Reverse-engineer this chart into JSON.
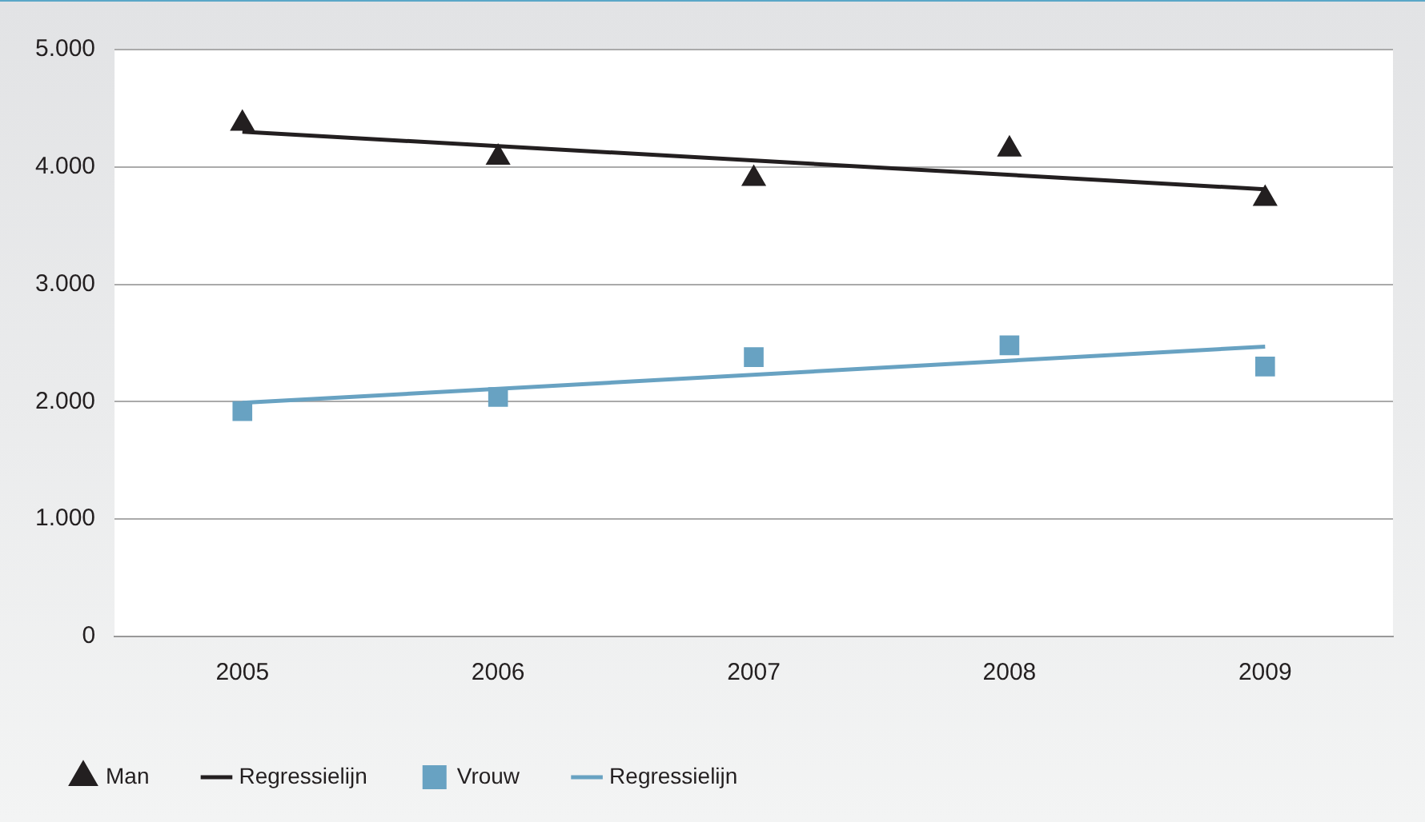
{
  "chart_data": {
    "type": "line",
    "categories": [
      "2005",
      "2006",
      "2007",
      "2008",
      "2009"
    ],
    "series": [
      {
        "name": "Man",
        "type": "scatter",
        "marker": "triangle",
        "color": "#231f20",
        "values": [
          4370,
          4080,
          3900,
          4150,
          3730
        ]
      },
      {
        "name": "Regressielijn",
        "marker": "none",
        "color": "#231f20",
        "values": [
          4300,
          null,
          null,
          null,
          3810
        ]
      },
      {
        "name": "Vrouw",
        "type": "scatter",
        "marker": "square",
        "color": "#68a2c2",
        "values": [
          1920,
          2040,
          2380,
          2480,
          2300
        ]
      },
      {
        "name": "Regressielijn",
        "marker": "none",
        "color": "#68a2c2",
        "values": [
          1990,
          null,
          null,
          null,
          2470
        ]
      }
    ],
    "ylim": [
      0,
      5000
    ],
    "yticks": [
      {
        "value": 0,
        "label": "0"
      },
      {
        "value": 1000,
        "label": "1.000"
      },
      {
        "value": 2000,
        "label": "2.000"
      },
      {
        "value": 3000,
        "label": "3.000"
      },
      {
        "value": 4000,
        "label": "4.000"
      },
      {
        "value": 5000,
        "label": "5.000"
      }
    ],
    "grid": "y",
    "legend": "bottom"
  }
}
